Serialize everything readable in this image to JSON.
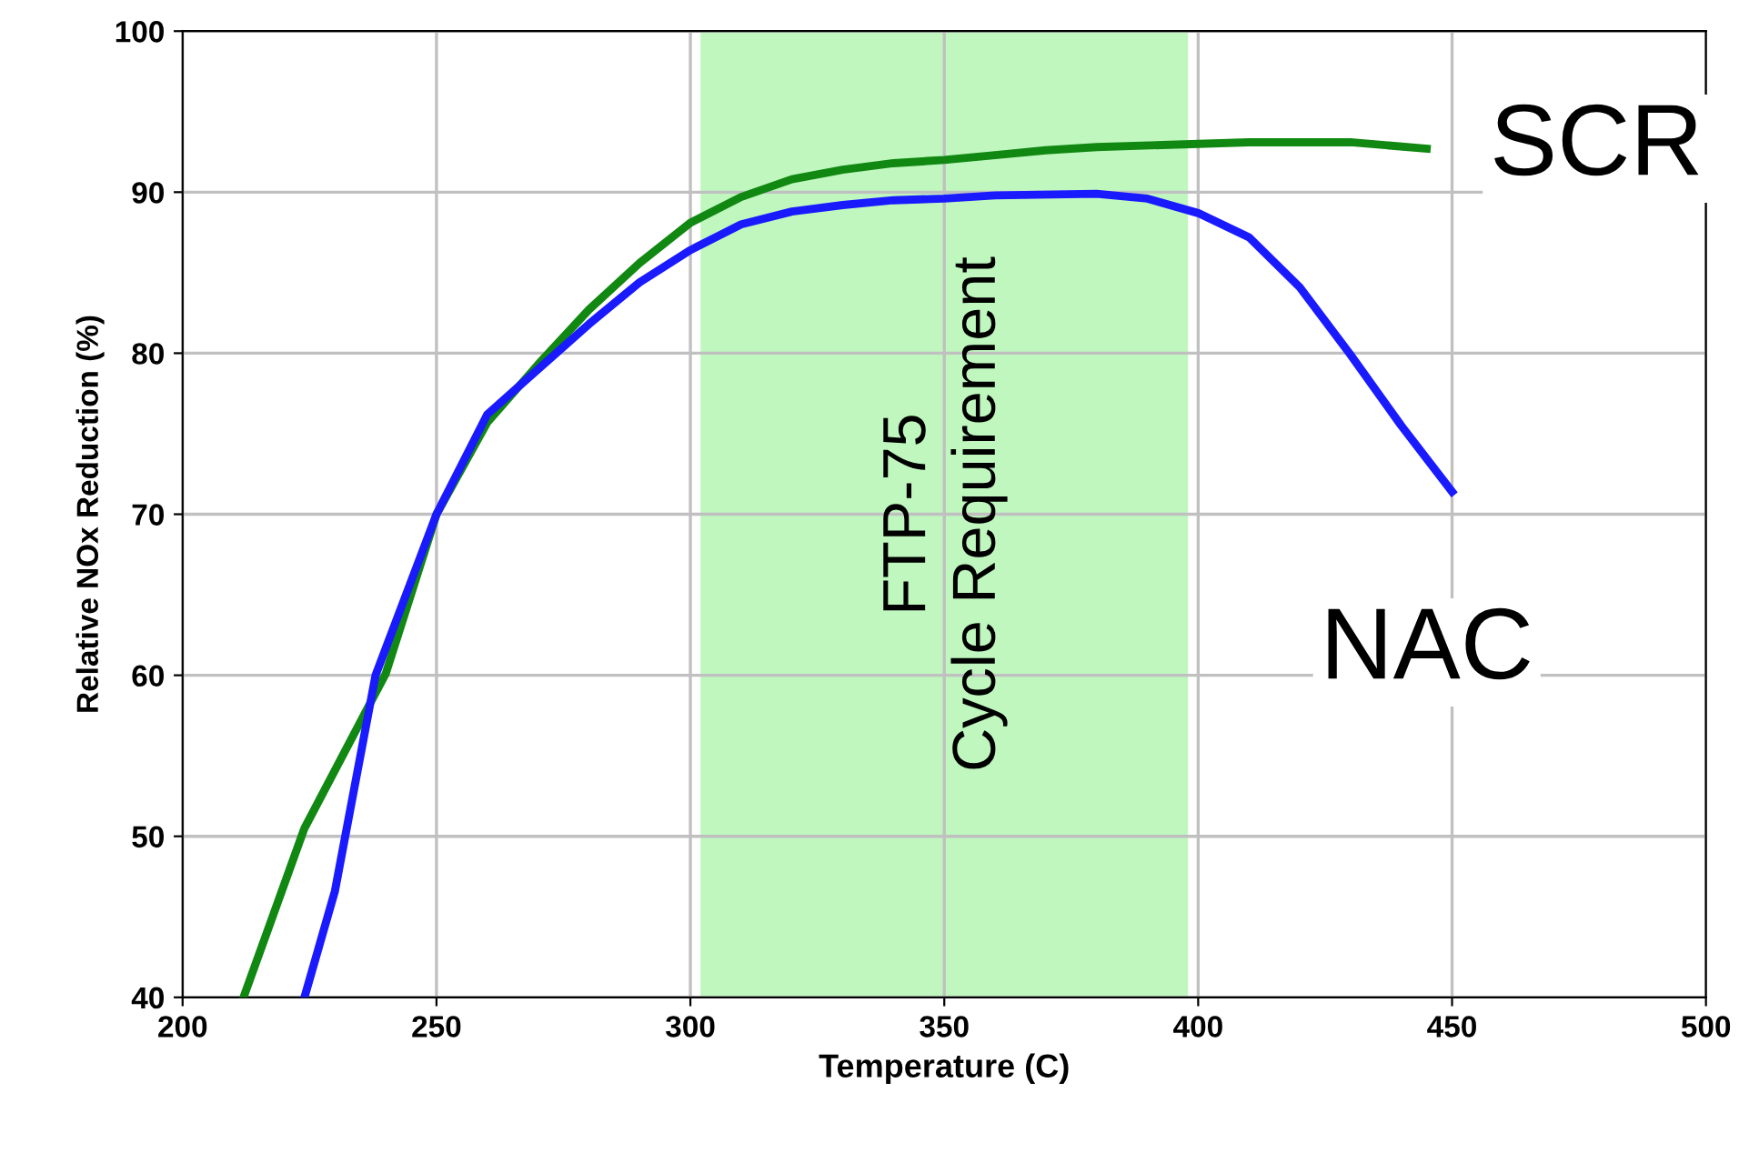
{
  "chart_data": {
    "type": "line",
    "xlabel": "Temperature (C)",
    "ylabel": "Relative NOx Reduction (%)",
    "xlim": [
      200,
      500
    ],
    "xticks": [
      200,
      250,
      300,
      350,
      400,
      450,
      500
    ],
    "ylim": [
      40,
      100
    ],
    "yticks": [
      40,
      50,
      60,
      70,
      80,
      90,
      100
    ],
    "grid": true,
    "legend": false,
    "marker": "none",
    "line_style": "solid",
    "series": [
      {
        "name": "SCR",
        "color": "#118811",
        "x": [
          212,
          224,
          240,
          250,
          260,
          270,
          280,
          290,
          300,
          310,
          320,
          330,
          340,
          350,
          360,
          370,
          380,
          400,
          410,
          430,
          445
        ],
        "values": [
          40,
          50.5,
          60.1,
          70,
          75.7,
          79.3,
          82.7,
          85.6,
          88.1,
          89.7,
          90.8,
          91.4,
          91.8,
          92.0,
          92.3,
          92.6,
          92.8,
          93.0,
          93.1,
          93.1,
          92.7
        ]
      },
      {
        "name": "NAC",
        "color": "#1a1aff",
        "x": [
          224,
          230,
          238,
          250,
          260,
          270,
          280,
          290,
          300,
          310,
          320,
          330,
          340,
          350,
          360,
          380,
          390,
          400,
          410,
          420,
          430,
          440,
          450
        ],
        "values": [
          40,
          46.6,
          60,
          70,
          76.2,
          79.0,
          81.8,
          84.4,
          86.4,
          88.0,
          88.8,
          89.2,
          89.5,
          89.6,
          89.8,
          89.9,
          89.6,
          88.7,
          87.2,
          84.1,
          79.9,
          75.5,
          71.4
        ]
      }
    ],
    "bands": [
      {
        "axis": "x",
        "from": 302,
        "to": 398,
        "label": "FTP-75\nCycle Requirement",
        "color": "#bff7bf"
      }
    ]
  }
}
